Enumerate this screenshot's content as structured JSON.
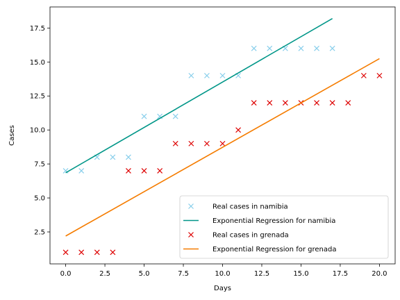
{
  "chart_data": {
    "type": "scatter",
    "xlabel": "Days",
    "ylabel": "Cases",
    "xlim": [
      -1.0,
      21.0
    ],
    "ylim": [
      0.15,
      19.05
    ],
    "xticks": [
      0.0,
      2.5,
      5.0,
      7.5,
      10.0,
      12.5,
      15.0,
      17.5,
      20.0
    ],
    "xtick_labels": [
      "0.0",
      "2.5",
      "5.0",
      "7.5",
      "10.0",
      "12.5",
      "15.0",
      "17.5",
      "20.0"
    ],
    "yticks": [
      2.5,
      5.0,
      7.5,
      10.0,
      12.5,
      15.0,
      17.5
    ],
    "ytick_labels": [
      "2.5",
      "5.0",
      "7.5",
      "10.0",
      "12.5",
      "15.0",
      "17.5"
    ],
    "grid": false,
    "legend_position": "bottom-right",
    "series": [
      {
        "name": "Real cases in namibia",
        "kind": "markers",
        "marker": "x",
        "color": "#87ceeb",
        "x": [
          0,
          1,
          2,
          3,
          4,
          5,
          6,
          7,
          8,
          9,
          10,
          11,
          12,
          13,
          14,
          15,
          16,
          17
        ],
        "y": [
          7,
          7,
          8,
          8,
          8,
          11,
          11,
          11,
          14,
          14,
          14,
          14,
          16,
          16,
          16,
          16,
          16,
          16
        ]
      },
      {
        "name": "Exponential Regression for namibia",
        "kind": "line",
        "color": "#009688",
        "x": [
          0,
          17
        ],
        "y": [
          6.85,
          18.2
        ]
      },
      {
        "name": "Real cases in grenada",
        "kind": "markers",
        "marker": "x",
        "color": "#dd0000",
        "x": [
          0,
          1,
          2,
          3,
          4,
          5,
          6,
          7,
          8,
          9,
          10,
          11,
          12,
          13,
          14,
          15,
          16,
          17,
          18,
          19,
          20
        ],
        "y": [
          1,
          1,
          1,
          1,
          7,
          7,
          7,
          9,
          9,
          9,
          9,
          10,
          12,
          12,
          12,
          12,
          12,
          12,
          12,
          14,
          14
        ]
      },
      {
        "name": "Exponential Regression for grenada",
        "kind": "line",
        "color": "#f57c00",
        "x": [
          0,
          20
        ],
        "y": [
          2.2,
          15.25
        ]
      }
    ]
  }
}
